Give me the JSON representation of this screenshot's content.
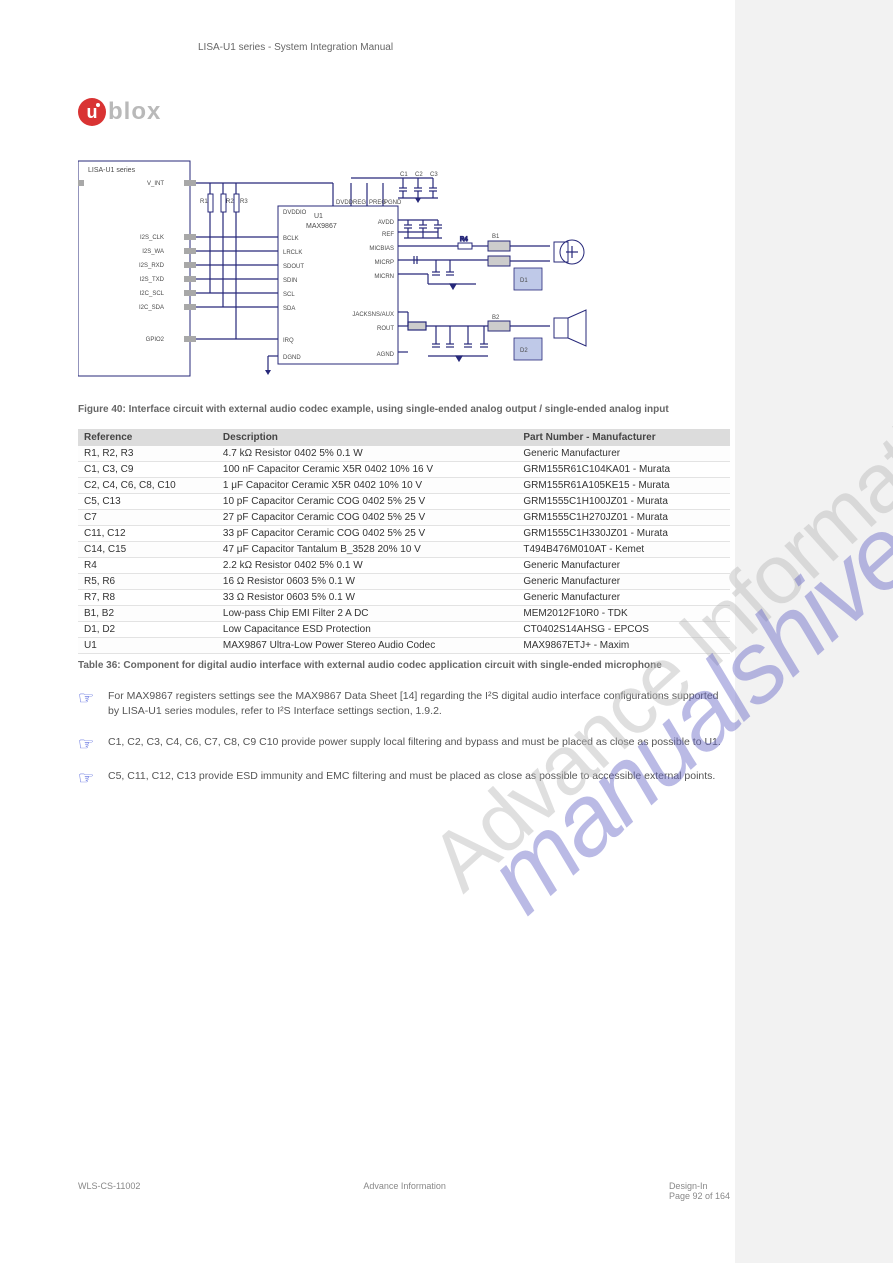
{
  "brand": {
    "u": "u",
    "rest": "blox"
  },
  "header": {
    "line1": "LISA-U1 series - System Integration Manual",
    "line2": ""
  },
  "figure": {
    "caption": "Figure 40: Interface circuit with external audio codec example, using single-ended analog output / single-ended analog input",
    "module_label": "LISA-U1 series",
    "codec_label": "MAX9867",
    "pins_module": [
      "V_INT",
      "I2S_CLK",
      "I2S_WA",
      "I2S_RXD",
      "I2S_TXD",
      "I2C_SCL",
      "I2C_SDA",
      "GPIO2"
    ],
    "pins_codec_left": [
      "DVDDIO",
      "BCLK",
      "LRCLK",
      "SDOUT",
      "SDIN",
      "SCL",
      "SDA",
      "IRQ",
      "DGND"
    ],
    "pins_codec_top": [
      "DVDD",
      "REG",
      "PREG",
      "PGND"
    ],
    "pins_codec_right": [
      "AVDD",
      "REF",
      "MICBIAS",
      "MICRP",
      "MICRN",
      "JACKSNS/AUX",
      "ROUT",
      "AGND"
    ],
    "r_labels": [
      "R1",
      "R2",
      "R3"
    ],
    "outputs": [
      "B1",
      "B2"
    ]
  },
  "table": {
    "caption": "Table 36: Component for digital audio interface with external audio codec application circuit with single-ended microphone",
    "columns": [
      "Reference",
      "Description",
      "Part Number - Manufacturer"
    ],
    "rows": [
      [
        "R1, R2, R3",
        "4.7 kΩ Resistor 0402 5% 0.1 W",
        "Generic Manufacturer"
      ],
      [
        "C1, C3, C9",
        "100 nF Capacitor Ceramic X5R 0402 10% 16 V",
        "GRM155R61C104KA01 - Murata"
      ],
      [
        "C2, C4, C6, C8, C10",
        "1 μF Capacitor Ceramic X5R 0402 10% 10 V",
        "GRM155R61A105KE15 - Murata"
      ],
      [
        "C5, C13",
        "10 pF Capacitor Ceramic COG 0402 5% 25 V",
        "GRM1555C1H100JZ01 - Murata"
      ],
      [
        "C7",
        "27 pF Capacitor Ceramic COG 0402 5% 25 V",
        "GRM1555C1H270JZ01 - Murata"
      ],
      [
        "C11, C12",
        "33 pF Capacitor Ceramic COG 0402 5% 25 V",
        "GRM1555C1H330JZ01 - Murata"
      ],
      [
        "C14, C15",
        "47 μF Capacitor Tantalum B_3528 20% 10 V",
        "T494B476M010AT - Kemet"
      ],
      [
        "R4",
        "2.2 kΩ Resistor 0402 5% 0.1 W",
        "Generic Manufacturer"
      ],
      [
        "R5, R6",
        "16 Ω Resistor 0603 5% 0.1 W",
        "Generic Manufacturer"
      ],
      [
        "R7, R8",
        "33 Ω Resistor 0603 5% 0.1 W",
        "Generic Manufacturer"
      ],
      [
        "B1, B2",
        "Low-pass Chip EMI Filter 2 A DC",
        "MEM2012F10R0 - TDK"
      ],
      [
        "D1, D2",
        "Low Capacitance ESD Protection",
        "CT0402S14AHSG - EPCOS"
      ],
      [
        "U1",
        "MAX9867 Ultra-Low Power Stereo Audio Codec",
        "MAX9867ETJ+ - Maxim"
      ]
    ]
  },
  "notes": [
    "For MAX9867 registers settings see the MAX9867 Data Sheet [14] regarding the I²S digital audio interface configurations supported by LISA-U1 series modules, refer to I²S Interface settings section, 1.9.2.",
    "C1, C2, C3, C4, C6, C7, C8, C9 C10 provide power supply local filtering and bypass and must be placed as close as possible to U1.",
    "C5, C11, C12, C13 provide ESD immunity and EMC filtering and must be placed as close as possible to accessible external points."
  ],
  "footer": {
    "left": "WLS-CS-11002",
    "center": "Advance Information",
    "right_label": "Design-In",
    "right_page": "Page 92 of 164"
  },
  "watermark1": "Advance Information",
  "watermark2": "manualshive.com",
  "colors": {
    "logo_red": "#d93333",
    "logo_grey": "#b9b9b9",
    "blue": "#2a3fd4",
    "purple": "#6767c7"
  }
}
